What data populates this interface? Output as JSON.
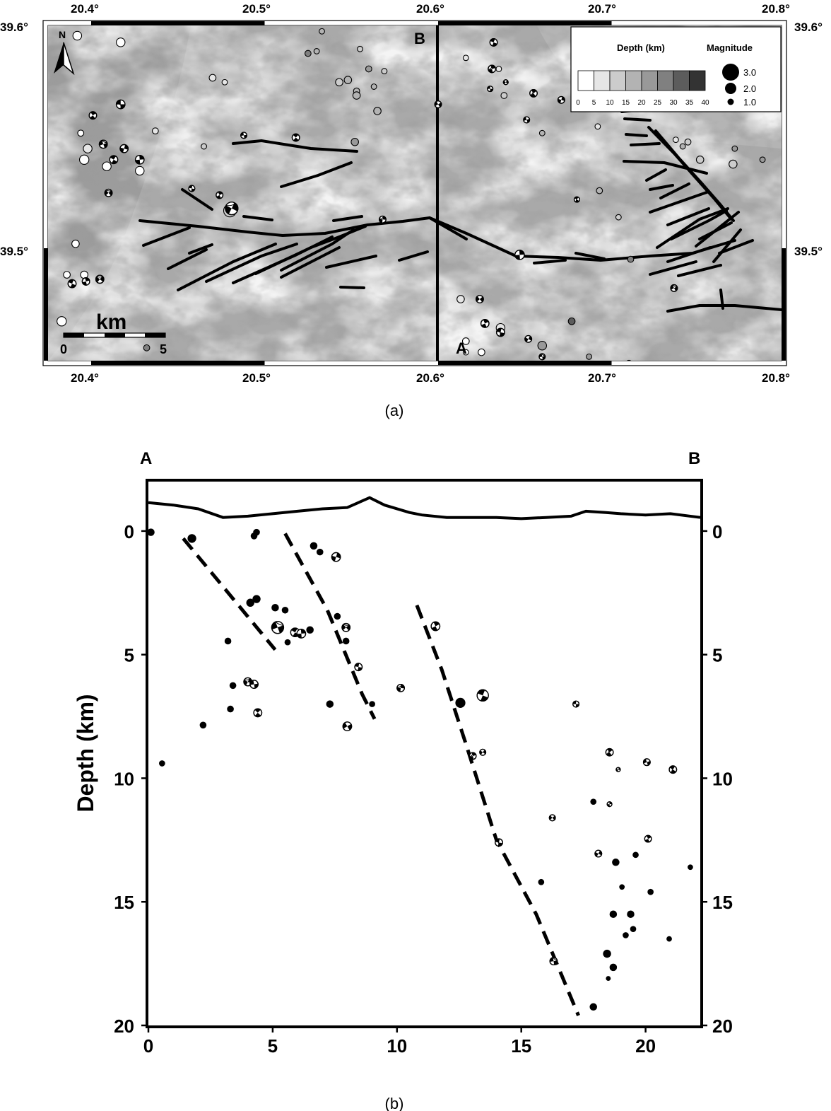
{
  "panel_a": {
    "caption": "(a)",
    "lon_ticks": [
      "20.4°",
      "20.5°",
      "20.6°",
      "20.7°",
      "20.8°"
    ],
    "lon_values": [
      20.4,
      20.5,
      20.6,
      20.7,
      20.8
    ],
    "lat_ticks": [
      "39.6°",
      "39.5°"
    ],
    "lat_values": [
      39.6,
      39.5
    ],
    "north_label": "N",
    "scale_bar": {
      "unit": "km",
      "start": "0",
      "end": "5"
    },
    "section_labels": {
      "a": "A",
      "b": "B"
    },
    "legend": {
      "depth_title": "Depth (km)",
      "depth_ticks": [
        "0",
        "5",
        "10",
        "15",
        "20",
        "25",
        "30",
        "35",
        "40"
      ],
      "depth_colors": [
        "#ffffff",
        "#e6e6e6",
        "#cccccc",
        "#b3b3b3",
        "#999999",
        "#808080",
        "#5c5c5c",
        "#333333"
      ],
      "magnitude_title": "Magnitude",
      "magnitudes": [
        "3.0",
        "2.0",
        "1.0"
      ]
    },
    "events": [
      {
        "lon": 20.392,
        "lat": 39.596,
        "d": 1,
        "m": 1.8
      },
      {
        "lon": 20.417,
        "lat": 39.593,
        "d": 2,
        "m": 1.8
      },
      {
        "lon": 20.394,
        "lat": 39.552,
        "d": 3,
        "m": 1.4
      },
      {
        "lon": 20.398,
        "lat": 39.545,
        "d": 5,
        "m": 1.8
      },
      {
        "lon": 20.409,
        "lat": 39.537,
        "d": 4,
        "m": 1.8
      },
      {
        "lon": 20.428,
        "lat": 39.535,
        "d": 3,
        "m": 1.8
      },
      {
        "lon": 20.396,
        "lat": 39.54,
        "d": 2,
        "m": 1.9
      },
      {
        "lon": 20.437,
        "lat": 39.553,
        "d": 6,
        "m": 1.4
      },
      {
        "lon": 20.47,
        "lat": 39.577,
        "d": 8,
        "m": 1.5
      },
      {
        "lon": 20.477,
        "lat": 39.575,
        "d": 6,
        "m": 1.3
      },
      {
        "lon": 20.465,
        "lat": 39.546,
        "d": 12,
        "m": 1.3
      },
      {
        "lon": 20.48,
        "lat": 39.517,
        "d": 12,
        "m": 2.4
      },
      {
        "lon": 20.533,
        "lat": 39.598,
        "d": 16,
        "m": 1.3
      },
      {
        "lon": 20.53,
        "lat": 39.589,
        "d": 18,
        "m": 1.3
      },
      {
        "lon": 20.555,
        "lat": 39.59,
        "d": 14,
        "m": 1.3
      },
      {
        "lon": 20.56,
        "lat": 39.581,
        "d": 20,
        "m": 1.4
      },
      {
        "lon": 20.553,
        "lat": 39.571,
        "d": 18,
        "m": 1.4
      },
      {
        "lon": 20.548,
        "lat": 39.576,
        "d": 16,
        "m": 1.6
      },
      {
        "lon": 20.553,
        "lat": 39.569,
        "d": 15,
        "m": 1.6
      },
      {
        "lon": 20.543,
        "lat": 39.575,
        "d": 13,
        "m": 1.6
      },
      {
        "lon": 20.563,
        "lat": 39.573,
        "d": 15,
        "m": 1.3
      },
      {
        "lon": 20.569,
        "lat": 39.58,
        "d": 10,
        "m": 1.3
      },
      {
        "lon": 20.525,
        "lat": 39.588,
        "d": 25,
        "m": 1.4
      },
      {
        "lon": 20.565,
        "lat": 39.562,
        "d": 16,
        "m": 1.6
      },
      {
        "lon": 20.552,
        "lat": 39.548,
        "d": 23,
        "m": 1.6
      },
      {
        "lon": 20.6,
        "lat": 39.603,
        "d": 10,
        "m": 1.2
      },
      {
        "lon": 20.616,
        "lat": 39.586,
        "d": 8,
        "m": 1.3
      },
      {
        "lon": 20.635,
        "lat": 39.581,
        "d": 5,
        "m": 1.3
      },
      {
        "lon": 20.638,
        "lat": 39.569,
        "d": 10,
        "m": 1.4
      },
      {
        "lon": 20.66,
        "lat": 39.552,
        "d": 17,
        "m": 1.3
      },
      {
        "lon": 20.692,
        "lat": 39.555,
        "d": 6,
        "m": 1.3
      },
      {
        "lon": 20.741,
        "lat": 39.546,
        "d": 15,
        "m": 1.3
      },
      {
        "lon": 20.744,
        "lat": 39.548,
        "d": 13,
        "m": 1.4
      },
      {
        "lon": 20.77,
        "lat": 39.538,
        "d": 14,
        "m": 1.7
      },
      {
        "lon": 20.737,
        "lat": 39.549,
        "d": 7,
        "m": 1.3
      },
      {
        "lon": 20.771,
        "lat": 39.545,
        "d": 20,
        "m": 1.3
      },
      {
        "lon": 20.787,
        "lat": 39.54,
        "d": 24,
        "m": 1.3
      },
      {
        "lon": 20.751,
        "lat": 39.54,
        "d": 14,
        "m": 1.6
      },
      {
        "lon": 20.693,
        "lat": 39.526,
        "d": 15,
        "m": 1.4
      },
      {
        "lon": 20.704,
        "lat": 39.514,
        "d": 12,
        "m": 1.3
      },
      {
        "lon": 20.613,
        "lat": 39.477,
        "d": 5,
        "m": 1.6
      },
      {
        "lon": 20.616,
        "lat": 39.458,
        "d": 4,
        "m": 1.5
      },
      {
        "lon": 20.636,
        "lat": 39.464,
        "d": 5,
        "m": 1.8
      },
      {
        "lon": 20.625,
        "lat": 39.453,
        "d": 1,
        "m": 1.5
      },
      {
        "lon": 20.66,
        "lat": 39.456,
        "d": 22,
        "m": 1.8
      },
      {
        "lon": 20.687,
        "lat": 39.451,
        "d": 23,
        "m": 1.3
      },
      {
        "lon": 20.684,
        "lat": 39.438,
        "d": 23,
        "m": 1.4
      },
      {
        "lon": 20.71,
        "lat": 39.448,
        "d": 20,
        "m": 1.4
      },
      {
        "lon": 20.752,
        "lat": 39.438,
        "d": 20,
        "m": 1.5
      },
      {
        "lon": 20.766,
        "lat": 39.436,
        "d": 22,
        "m": 1.4
      },
      {
        "lon": 20.774,
        "lat": 39.435,
        "d": 18,
        "m": 1.4
      },
      {
        "lon": 20.787,
        "lat": 39.434,
        "d": 30,
        "m": 1.5
      },
      {
        "lon": 20.78,
        "lat": 39.431,
        "d": 14,
        "m": 1.4
      },
      {
        "lon": 20.714,
        "lat": 39.433,
        "d": 25,
        "m": 1.3
      },
      {
        "lon": 20.711,
        "lat": 39.495,
        "d": 27,
        "m": 1.4
      },
      {
        "lon": 20.677,
        "lat": 39.467,
        "d": 30,
        "m": 1.5
      },
      {
        "lon": 20.391,
        "lat": 39.502,
        "d": 1,
        "m": 1.6
      },
      {
        "lon": 20.386,
        "lat": 39.488,
        "d": 1,
        "m": 1.5
      },
      {
        "lon": 20.396,
        "lat": 39.488,
        "d": 1,
        "m": 1.6
      },
      {
        "lon": 20.383,
        "lat": 39.467,
        "d": 1,
        "m": 1.9
      },
      {
        "lon": 20.432,
        "lat": 39.455,
        "d": 26,
        "m": 1.4
      },
      {
        "lon": 20.49,
        "lat": 39.44,
        "d": 1,
        "m": 1.5
      },
      {
        "lon": 20.523,
        "lat": 39.437,
        "d": 1,
        "m": 1.4
      },
      {
        "lon": 20.532,
        "lat": 39.43,
        "d": 1,
        "m": 1.4
      },
      {
        "lon": 20.57,
        "lat": 39.438,
        "d": 2,
        "m": 1.8
      },
      {
        "lon": 20.616,
        "lat": 39.453,
        "d": 3,
        "m": 1.3
      }
    ],
    "mechanisms": [
      {
        "lon": 20.417,
        "lat": 39.565,
        "m": 1.8
      },
      {
        "lon": 20.401,
        "lat": 39.56,
        "m": 1.6
      },
      {
        "lon": 20.419,
        "lat": 39.545,
        "m": 1.7
      },
      {
        "lon": 20.407,
        "lat": 39.547,
        "m": 1.7
      },
      {
        "lon": 20.413,
        "lat": 39.54,
        "m": 1.7
      },
      {
        "lon": 20.428,
        "lat": 39.54,
        "m": 1.8
      },
      {
        "lon": 20.41,
        "lat": 39.525,
        "m": 1.6
      },
      {
        "lon": 20.458,
        "lat": 39.527,
        "m": 1.4
      },
      {
        "lon": 20.474,
        "lat": 39.524,
        "m": 1.5
      },
      {
        "lon": 20.481,
        "lat": 39.518,
        "m": 2.4
      },
      {
        "lon": 20.488,
        "lat": 39.551,
        "m": 1.4
      },
      {
        "lon": 20.518,
        "lat": 39.55,
        "m": 1.6
      },
      {
        "lon": 20.568,
        "lat": 39.513,
        "m": 1.5
      },
      {
        "lon": 20.6,
        "lat": 39.565,
        "m": 1.5
      },
      {
        "lon": 20.632,
        "lat": 39.593,
        "m": 1.6
      },
      {
        "lon": 20.631,
        "lat": 39.581,
        "m": 1.6
      },
      {
        "lon": 20.639,
        "lat": 39.575,
        "m": 1.2
      },
      {
        "lon": 20.63,
        "lat": 39.572,
        "m": 1.3
      },
      {
        "lon": 20.655,
        "lat": 39.57,
        "m": 1.6
      },
      {
        "lon": 20.671,
        "lat": 39.567,
        "m": 1.5
      },
      {
        "lon": 20.651,
        "lat": 39.558,
        "m": 1.4
      },
      {
        "lon": 20.68,
        "lat": 39.522,
        "m": 1.3
      },
      {
        "lon": 20.647,
        "lat": 39.497,
        "m": 1.9
      },
      {
        "lon": 20.624,
        "lat": 39.477,
        "m": 1.6
      },
      {
        "lon": 20.636,
        "lat": 39.462,
        "m": 1.7
      },
      {
        "lon": 20.627,
        "lat": 39.466,
        "m": 1.7
      },
      {
        "lon": 20.652,
        "lat": 39.459,
        "m": 1.5
      },
      {
        "lon": 20.66,
        "lat": 39.451,
        "m": 1.4
      },
      {
        "lon": 20.685,
        "lat": 39.438,
        "m": 1.4
      },
      {
        "lon": 20.713,
        "lat": 39.439,
        "m": 1.6
      },
      {
        "lon": 20.736,
        "lat": 39.482,
        "m": 1.5
      },
      {
        "lon": 20.389,
        "lat": 39.484,
        "m": 1.7
      },
      {
        "lon": 20.397,
        "lat": 39.485,
        "m": 1.6
      },
      {
        "lon": 20.405,
        "lat": 39.486,
        "m": 1.7
      },
      {
        "lon": 20.524,
        "lat": 39.443,
        "m": 1.6
      },
      {
        "lon": 20.574,
        "lat": 39.437,
        "m": 1.7
      },
      {
        "lon": 20.601,
        "lat": 39.425,
        "m": 1.7
      }
    ]
  },
  "panel_b": {
    "caption": "(b)",
    "left_label": "A",
    "right_label": "B",
    "chart_data": {
      "type": "scatter",
      "xlabel": "",
      "ylabel": "Depth (km)",
      "xlim": [
        0,
        22.2
      ],
      "ylim": [
        20,
        -2
      ],
      "x_ticks": [
        0,
        5,
        10,
        15,
        20
      ],
      "y_ticks": [
        0,
        5,
        10,
        15,
        20
      ],
      "topography": [
        [
          0,
          -1.15
        ],
        [
          1,
          -1.05
        ],
        [
          2,
          -0.9
        ],
        [
          3,
          -0.55
        ],
        [
          4,
          -0.6
        ],
        [
          5,
          -0.7
        ],
        [
          6,
          -0.8
        ],
        [
          7,
          -0.9
        ],
        [
          8,
          -0.95
        ],
        [
          8.9,
          -1.35
        ],
        [
          9.5,
          -1.05
        ],
        [
          10.5,
          -0.75
        ],
        [
          11,
          -0.65
        ],
        [
          12,
          -0.55
        ],
        [
          13,
          -0.55
        ],
        [
          14,
          -0.55
        ],
        [
          15,
          -0.5
        ],
        [
          16,
          -0.55
        ],
        [
          17,
          -0.6
        ],
        [
          17.6,
          -0.8
        ],
        [
          18.4,
          -0.75
        ],
        [
          19,
          -0.7
        ],
        [
          20,
          -0.65
        ],
        [
          21,
          -0.7
        ],
        [
          22.2,
          -0.55
        ]
      ],
      "dashed_lines": [
        [
          [
            1.4,
            0.3
          ],
          [
            5.1,
            4.8
          ]
        ],
        [
          [
            5.5,
            0.1
          ],
          [
            7.2,
            3.2
          ],
          [
            8.6,
            6.6
          ],
          [
            9.1,
            7.6
          ]
        ],
        [
          [
            10.8,
            3.0
          ],
          [
            11.8,
            5.6
          ],
          [
            12.8,
            8.7
          ],
          [
            14.0,
            12.5
          ],
          [
            15.6,
            15.5
          ],
          [
            17.3,
            19.6
          ]
        ]
      ],
      "events": [
        {
          "x": 0.1,
          "y": 0.05,
          "m": 1.6
        },
        {
          "x": 1.75,
          "y": 0.3,
          "m": 1.8
        },
        {
          "x": 4.35,
          "y": 0.05,
          "m": 1.5
        },
        {
          "x": 4.25,
          "y": 0.2,
          "m": 1.5
        },
        {
          "x": 6.65,
          "y": 0.6,
          "m": 1.6
        },
        {
          "x": 6.9,
          "y": 0.85,
          "m": 1.5
        },
        {
          "x": 4.1,
          "y": 2.9,
          "m": 1.7
        },
        {
          "x": 4.35,
          "y": 2.75,
          "m": 1.7
        },
        {
          "x": 5.1,
          "y": 3.1,
          "m": 1.6
        },
        {
          "x": 5.5,
          "y": 3.2,
          "m": 1.5
        },
        {
          "x": 3.2,
          "y": 4.45,
          "m": 1.5
        },
        {
          "x": 5.6,
          "y": 4.5,
          "m": 1.4
        },
        {
          "x": 6.5,
          "y": 4.0,
          "m": 1.6
        },
        {
          "x": 7.6,
          "y": 3.45,
          "m": 1.5
        },
        {
          "x": 7.95,
          "y": 4.45,
          "m": 1.5
        },
        {
          "x": 3.4,
          "y": 6.25,
          "m": 1.5
        },
        {
          "x": 3.3,
          "y": 7.2,
          "m": 1.5
        },
        {
          "x": 2.2,
          "y": 7.85,
          "m": 1.5
        },
        {
          "x": 0.55,
          "y": 9.4,
          "m": 1.4
        },
        {
          "x": 7.3,
          "y": 7.0,
          "m": 1.6
        },
        {
          "x": 9.0,
          "y": 7.0,
          "m": 1.4
        },
        {
          "x": 12.55,
          "y": 6.95,
          "m": 2.0
        },
        {
          "x": 15.8,
          "y": 14.2,
          "m": 1.4
        },
        {
          "x": 17.9,
          "y": 10.95,
          "m": 1.4
        },
        {
          "x": 18.8,
          "y": 13.4,
          "m": 1.6
        },
        {
          "x": 19.6,
          "y": 13.1,
          "m": 1.4
        },
        {
          "x": 21.8,
          "y": 13.6,
          "m": 1.3
        },
        {
          "x": 19.05,
          "y": 14.4,
          "m": 1.3
        },
        {
          "x": 20.2,
          "y": 14.6,
          "m": 1.4
        },
        {
          "x": 18.7,
          "y": 15.5,
          "m": 1.6
        },
        {
          "x": 19.4,
          "y": 15.5,
          "m": 1.6
        },
        {
          "x": 19.5,
          "y": 16.1,
          "m": 1.4
        },
        {
          "x": 19.2,
          "y": 16.35,
          "m": 1.4
        },
        {
          "x": 20.95,
          "y": 16.5,
          "m": 1.3
        },
        {
          "x": 18.45,
          "y": 17.1,
          "m": 1.7
        },
        {
          "x": 18.7,
          "y": 17.65,
          "m": 1.6
        },
        {
          "x": 18.5,
          "y": 18.1,
          "m": 1.2
        },
        {
          "x": 17.9,
          "y": 19.25,
          "m": 1.6
        }
      ],
      "mechanisms": [
        {
          "x": 7.55,
          "y": 1.05,
          "m": 1.8
        },
        {
          "x": 5.2,
          "y": 3.9,
          "m": 2.3
        },
        {
          "x": 5.9,
          "y": 4.1,
          "m": 1.8
        },
        {
          "x": 6.15,
          "y": 4.15,
          "m": 1.8
        },
        {
          "x": 7.95,
          "y": 3.9,
          "m": 1.7
        },
        {
          "x": 8.45,
          "y": 5.5,
          "m": 1.6
        },
        {
          "x": 11.55,
          "y": 3.85,
          "m": 1.8
        },
        {
          "x": 4.0,
          "y": 6.1,
          "m": 1.7
        },
        {
          "x": 4.25,
          "y": 6.2,
          "m": 1.7
        },
        {
          "x": 4.4,
          "y": 7.35,
          "m": 1.7
        },
        {
          "x": 10.15,
          "y": 6.35,
          "m": 1.6
        },
        {
          "x": 8.0,
          "y": 7.9,
          "m": 1.8
        },
        {
          "x": 13.45,
          "y": 6.65,
          "m": 2.2
        },
        {
          "x": 13.05,
          "y": 9.1,
          "m": 1.5
        },
        {
          "x": 13.45,
          "y": 8.95,
          "m": 1.4
        },
        {
          "x": 17.2,
          "y": 7.0,
          "m": 1.4
        },
        {
          "x": 18.55,
          "y": 8.95,
          "m": 1.6
        },
        {
          "x": 18.9,
          "y": 9.65,
          "m": 1.1
        },
        {
          "x": 20.05,
          "y": 9.35,
          "m": 1.5
        },
        {
          "x": 21.1,
          "y": 9.65,
          "m": 1.6
        },
        {
          "x": 18.55,
          "y": 11.05,
          "m": 1.2
        },
        {
          "x": 16.25,
          "y": 11.6,
          "m": 1.4
        },
        {
          "x": 14.1,
          "y": 12.6,
          "m": 1.6
        },
        {
          "x": 20.1,
          "y": 12.45,
          "m": 1.5
        },
        {
          "x": 18.1,
          "y": 13.05,
          "m": 1.5
        },
        {
          "x": 16.3,
          "y": 17.4,
          "m": 1.6
        }
      ]
    }
  }
}
